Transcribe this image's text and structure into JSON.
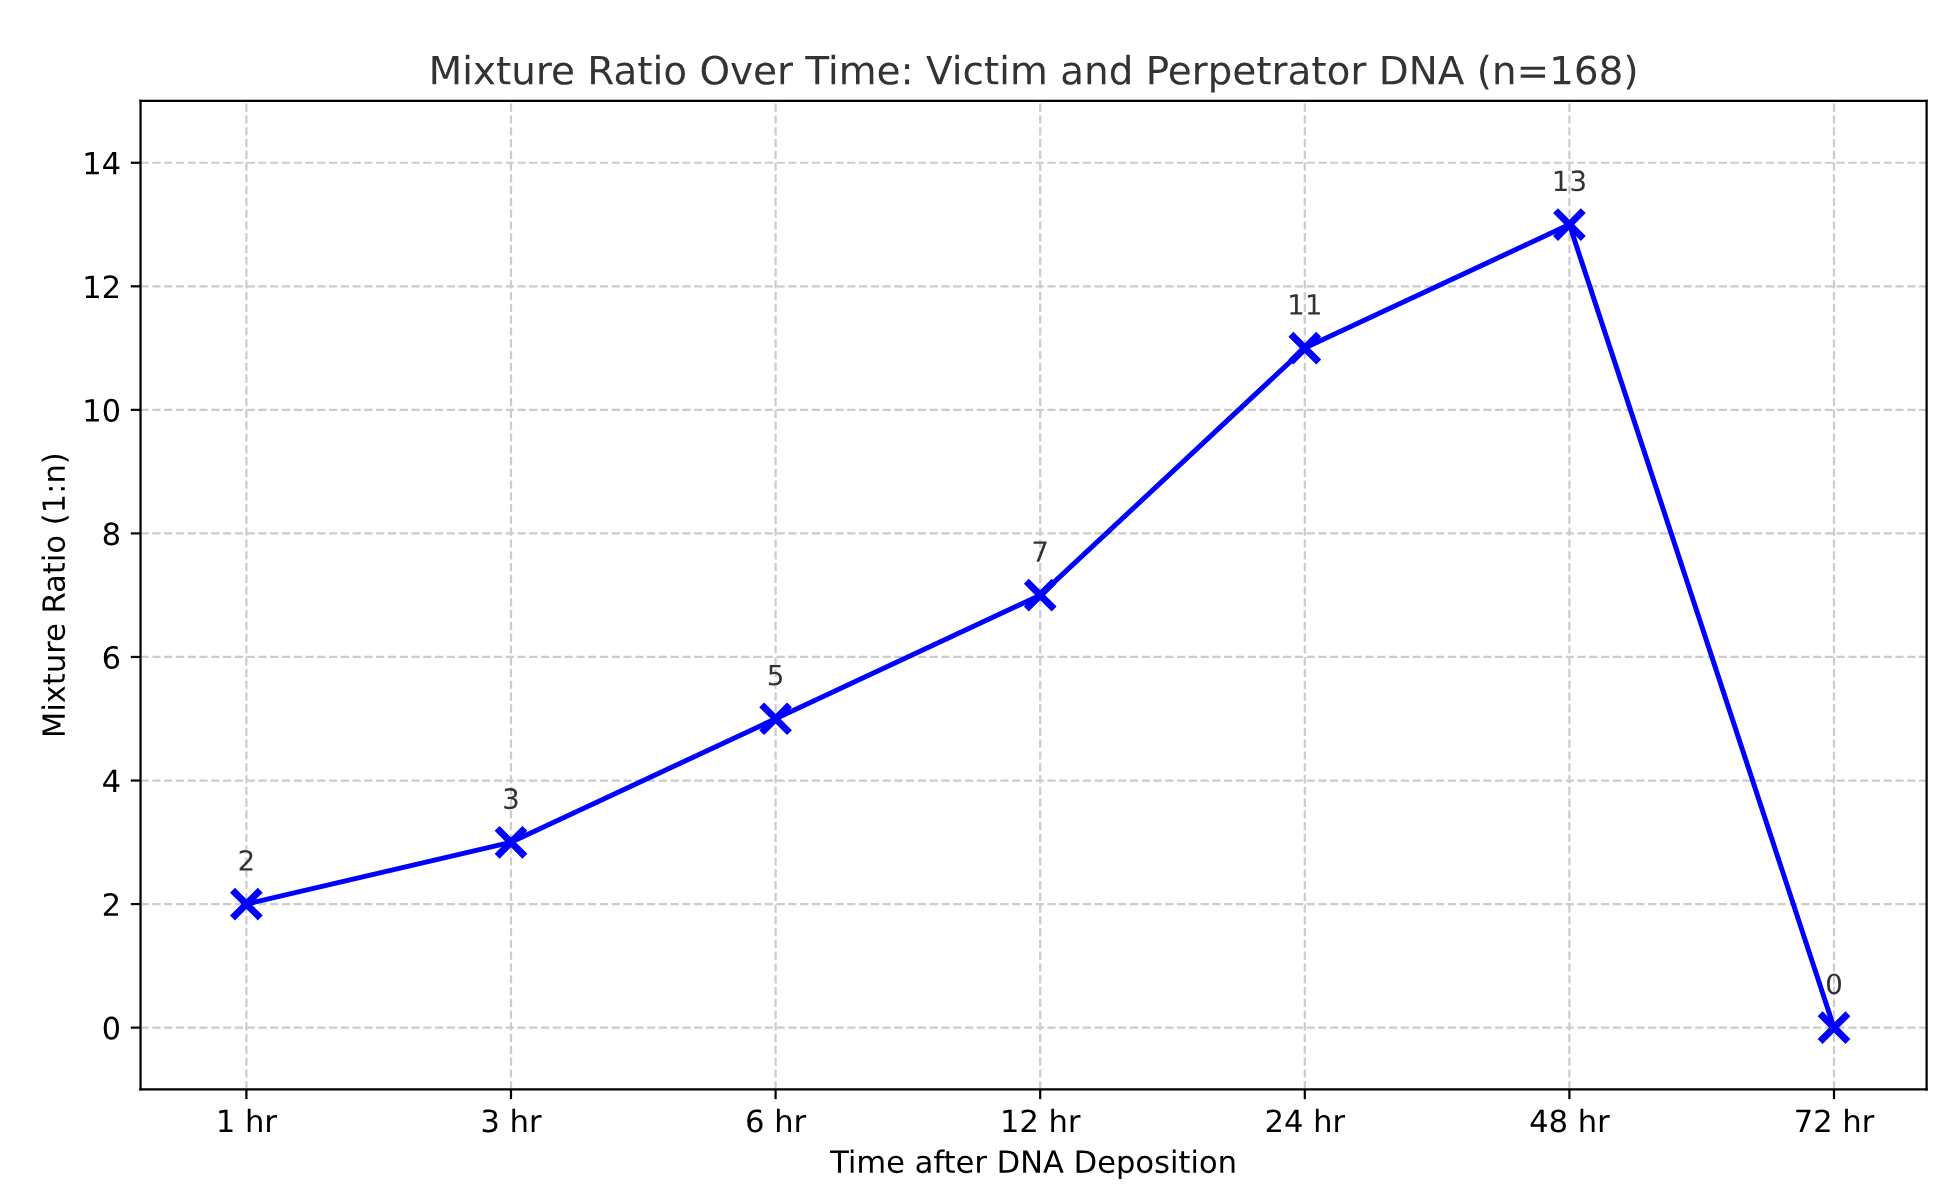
{
  "chart_data": {
    "type": "line",
    "title": "Mixture Ratio Over Time: Victim and Perpetrator DNA (n=168)",
    "xlabel": "Time after DNA Deposition",
    "ylabel": "Mixture Ratio (1:n)",
    "categories": [
      "1 hr",
      "3 hr",
      "6 hr",
      "12 hr",
      "24 hr",
      "48 hr",
      "72 hr"
    ],
    "series": [
      {
        "color": "#0000ff",
        "values": [
          2,
          3,
          5,
          7,
          11,
          13,
          0
        ]
      }
    ],
    "ylim": [
      -1,
      15
    ],
    "yticks": [
      0,
      2,
      4,
      6,
      8,
      10,
      12,
      14
    ],
    "grid": true,
    "marker": "cross",
    "line_style": "solid",
    "data_labels": true
  }
}
